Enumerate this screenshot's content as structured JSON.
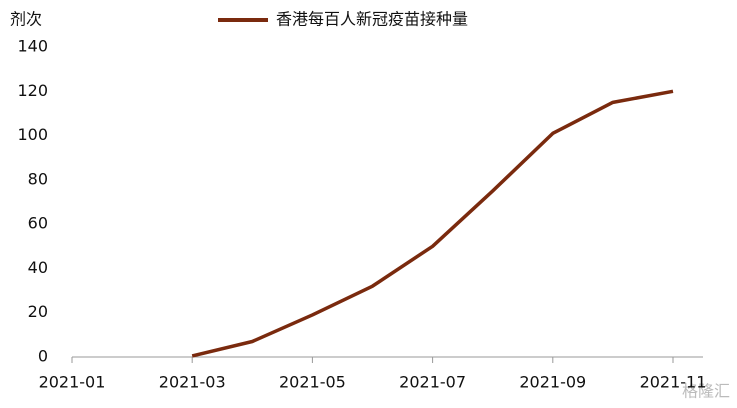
{
  "chart_data": {
    "type": "line",
    "y_label": "剂次",
    "x": [
      "2021-03",
      "2021-04",
      "2021-05",
      "2021-06",
      "2021-07",
      "2021-08",
      "2021-09",
      "2021-10",
      "2021-11"
    ],
    "series": [
      {
        "name": "香港每百人新冠疫苗接种量",
        "color": "#7a2a0e",
        "values": [
          0.5,
          7,
          19,
          32,
          50,
          75,
          101,
          115,
          120
        ]
      }
    ],
    "xticks": [
      "2021-01",
      "2021-03",
      "2021-05",
      "2021-07",
      "2021-09",
      "2021-11"
    ],
    "ylim": [
      0,
      140
    ],
    "yticks": [
      0,
      20,
      40,
      60,
      80,
      100,
      120,
      140
    ],
    "legend": "top",
    "watermark": "格隆汇"
  }
}
